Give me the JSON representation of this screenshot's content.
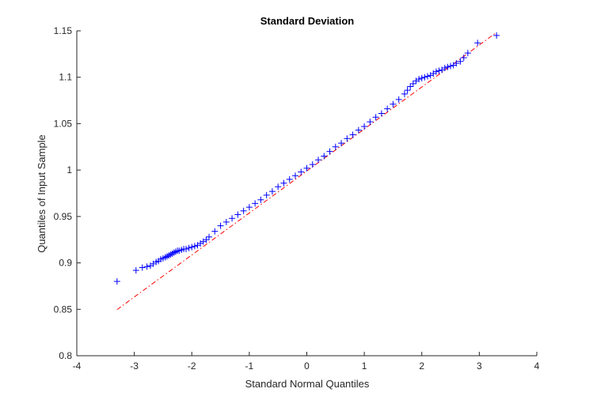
{
  "chart_data": {
    "type": "scatter",
    "title": "Standard Deviation",
    "xlabel": "Standard Normal Quantiles",
    "ylabel": "Quantiles of Input Sample",
    "xlim": [
      -4,
      4
    ],
    "ylim": [
      0.8,
      1.15
    ],
    "xticks": [
      "-4",
      "-3",
      "-2",
      "-1",
      "0",
      "1",
      "2",
      "3",
      "4"
    ],
    "yticks": [
      "0.8",
      "0.85",
      "0.9",
      "0.95",
      "1",
      "1.05",
      "1.1",
      "1.15"
    ],
    "grid": false,
    "marker": "+",
    "marker_color": "#0000ff",
    "reference_line": {
      "style": "dash-dot",
      "color": "#ff0000",
      "x": [
        -3.3,
        3.3
      ],
      "y": [
        0.8497,
        1.1483
      ]
    },
    "series": [
      {
        "x": [
          -3.3,
          -2.97,
          -2.86,
          -2.78,
          -2.72,
          -2.67,
          -2.62,
          -2.58,
          -2.54,
          -2.5,
          -2.46,
          -2.43,
          -2.4,
          -2.37,
          -2.34,
          -2.31,
          -2.28,
          -2.25,
          -2.22,
          -2.18,
          -2.14,
          -2.1,
          -2.05,
          -2.0,
          -1.95,
          -1.9,
          -1.85,
          -1.8,
          -1.75,
          -1.7,
          -1.6,
          -1.5,
          -1.4,
          -1.3,
          -1.2,
          -1.1,
          -1.0,
          -0.9,
          -0.8,
          -0.7,
          -0.6,
          -0.5,
          -0.4,
          -0.3,
          -0.2,
          -0.1,
          0.0,
          0.1,
          0.2,
          0.3,
          0.4,
          0.5,
          0.6,
          0.7,
          0.8,
          0.9,
          1.0,
          1.1,
          1.2,
          1.3,
          1.4,
          1.5,
          1.6,
          1.7,
          1.75,
          1.8,
          1.85,
          1.9,
          1.95,
          2.0,
          2.05,
          2.1,
          2.15,
          2.2,
          2.25,
          2.3,
          2.35,
          2.4,
          2.45,
          2.5,
          2.55,
          2.6,
          2.67,
          2.73,
          2.8,
          2.97,
          3.3
        ],
        "y": [
          0.88,
          0.892,
          0.895,
          0.896,
          0.897,
          0.899,
          0.901,
          0.902,
          0.904,
          0.905,
          0.906,
          0.907,
          0.908,
          0.909,
          0.91,
          0.911,
          0.912,
          0.913,
          0.913,
          0.914,
          0.915,
          0.915,
          0.916,
          0.917,
          0.918,
          0.919,
          0.921,
          0.923,
          0.925,
          0.928,
          0.934,
          0.94,
          0.944,
          0.948,
          0.952,
          0.956,
          0.96,
          0.964,
          0.968,
          0.973,
          0.977,
          0.982,
          0.986,
          0.99,
          0.994,
          0.998,
          1.002,
          1.006,
          1.011,
          1.015,
          1.02,
          1.025,
          1.029,
          1.034,
          1.038,
          1.043,
          1.047,
          1.052,
          1.057,
          1.061,
          1.066,
          1.071,
          1.076,
          1.082,
          1.086,
          1.09,
          1.093,
          1.096,
          1.098,
          1.099,
          1.1,
          1.101,
          1.102,
          1.104,
          1.106,
          1.107,
          1.108,
          1.11,
          1.111,
          1.112,
          1.113,
          1.115,
          1.117,
          1.121,
          1.126,
          1.137,
          1.145
        ]
      }
    ]
  }
}
